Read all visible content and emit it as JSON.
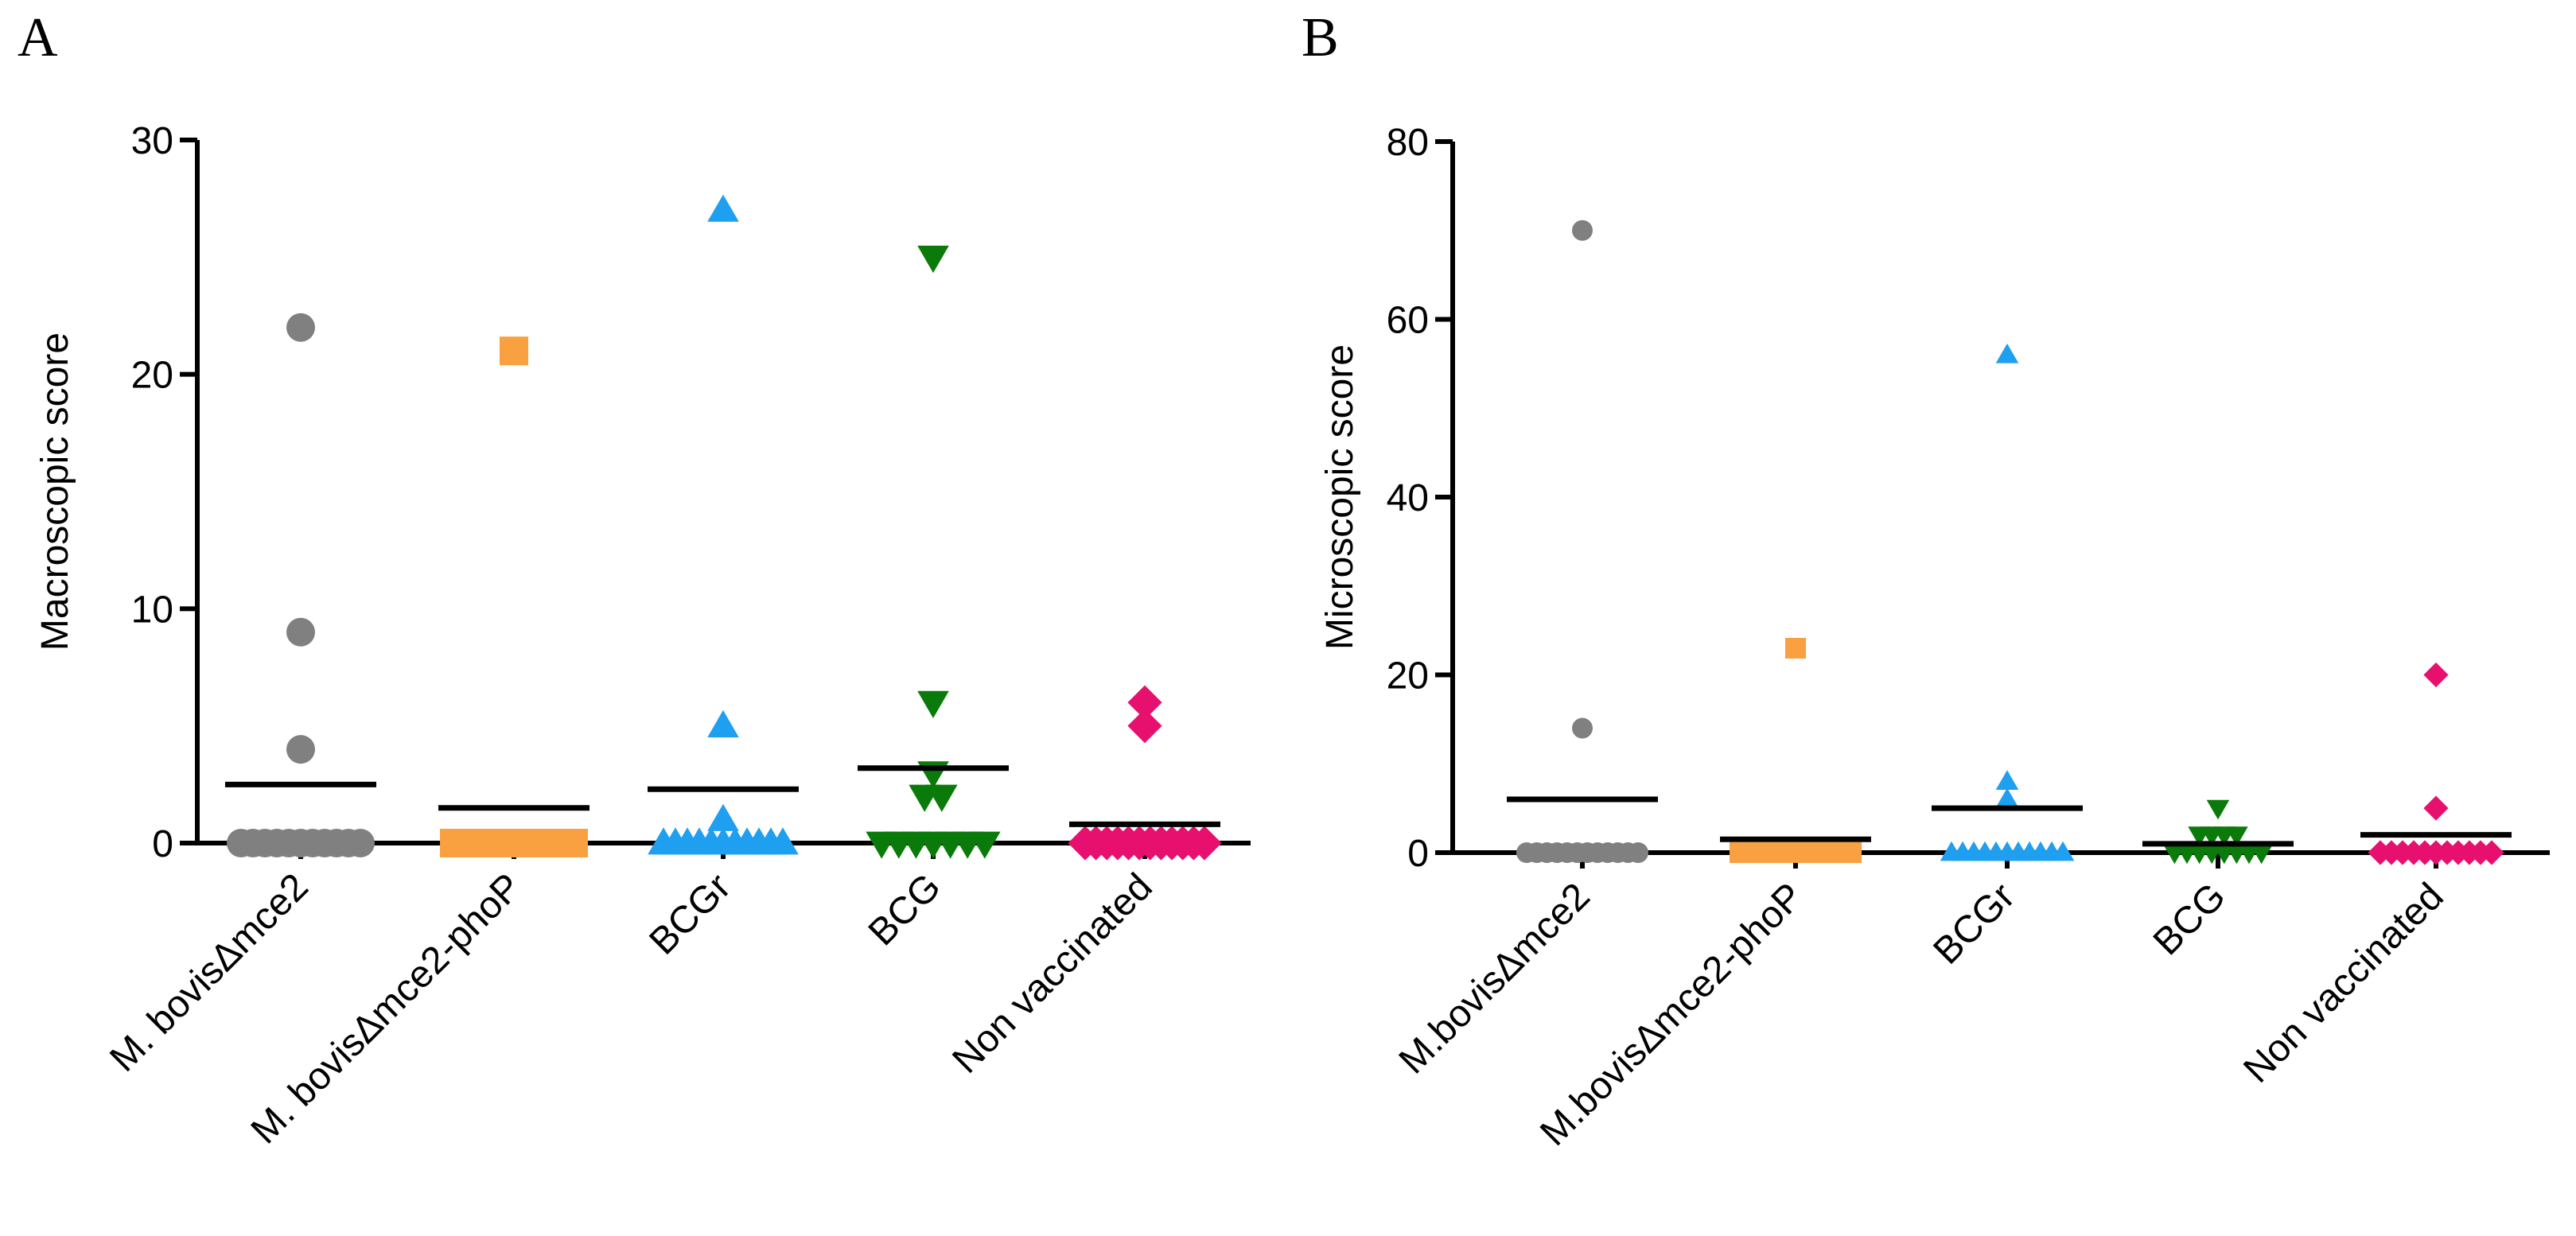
{
  "chart_data": [
    {
      "type": "scatter",
      "panel": "A",
      "ylabel": "Macroscopic score",
      "ylim": [
        0,
        30
      ],
      "yticks": [
        0,
        10,
        20,
        30
      ],
      "categories": [
        "M. bovisΔmce2",
        "M. bovisΔmce2-phoP",
        "BCGr",
        "BCG",
        "Non vaccinated"
      ],
      "groups": [
        {
          "color": "#808080",
          "marker": "circle",
          "values": [
            22,
            9,
            4,
            0,
            0,
            0,
            0,
            0,
            0,
            0,
            0,
            0,
            0,
            0
          ],
          "mean": 2.5
        },
        {
          "color": "#f9a040",
          "marker": "square",
          "values": [
            21,
            0,
            0,
            0,
            0,
            0,
            0,
            0,
            0,
            0,
            0,
            0,
            0,
            0
          ],
          "mean": 1.5
        },
        {
          "color": "#1e9ff0",
          "marker": "triangle-up",
          "values": [
            27,
            5,
            1,
            0,
            0,
            0,
            0,
            0,
            0,
            0,
            0,
            0,
            0,
            0
          ],
          "mean": 2.3
        },
        {
          "color": "#0a7a0a",
          "marker": "triangle-down",
          "values": [
            25,
            6,
            3,
            2,
            2,
            0,
            0,
            0,
            0,
            0,
            0,
            0
          ],
          "mean": 3.2
        },
        {
          "color": "#e8106e",
          "marker": "diamond",
          "values": [
            6,
            5,
            0,
            0,
            0,
            0,
            0,
            0,
            0,
            0,
            0,
            0,
            0,
            0
          ],
          "mean": 0.8
        }
      ]
    },
    {
      "type": "scatter",
      "panel": "B",
      "ylabel": "Microscopic score",
      "ylim": [
        0,
        80
      ],
      "yticks": [
        0,
        20,
        40,
        60,
        80
      ],
      "categories": [
        "M.bovisΔmce2",
        "M.bovisΔmce2-phoP",
        "BCGr",
        "BCG",
        "Non vaccinated"
      ],
      "groups": [
        {
          "color": "#808080",
          "marker": "circle",
          "values": [
            70,
            14,
            0,
            0,
            0,
            0,
            0,
            0,
            0,
            0,
            0,
            0,
            0,
            0
          ],
          "mean": 6
        },
        {
          "color": "#f9a040",
          "marker": "square",
          "values": [
            23,
            0,
            0,
            0,
            0,
            0,
            0,
            0,
            0,
            0,
            0,
            0,
            0,
            0
          ],
          "mean": 1.5
        },
        {
          "color": "#1e9ff0",
          "marker": "triangle-up",
          "values": [
            56,
            8,
            6,
            0,
            0,
            0,
            0,
            0,
            0,
            0,
            0,
            0,
            0,
            0
          ],
          "mean": 5
        },
        {
          "color": "#0a7a0a",
          "marker": "triangle-down",
          "values": [
            5,
            2,
            2,
            2,
            2,
            0,
            0,
            0,
            0,
            0,
            0,
            0,
            0
          ],
          "mean": 1
        },
        {
          "color": "#e8106e",
          "marker": "diamond",
          "values": [
            20,
            5,
            0,
            0,
            0,
            0,
            0,
            0,
            0,
            0,
            0,
            0,
            0
          ],
          "mean": 2
        }
      ]
    }
  ]
}
